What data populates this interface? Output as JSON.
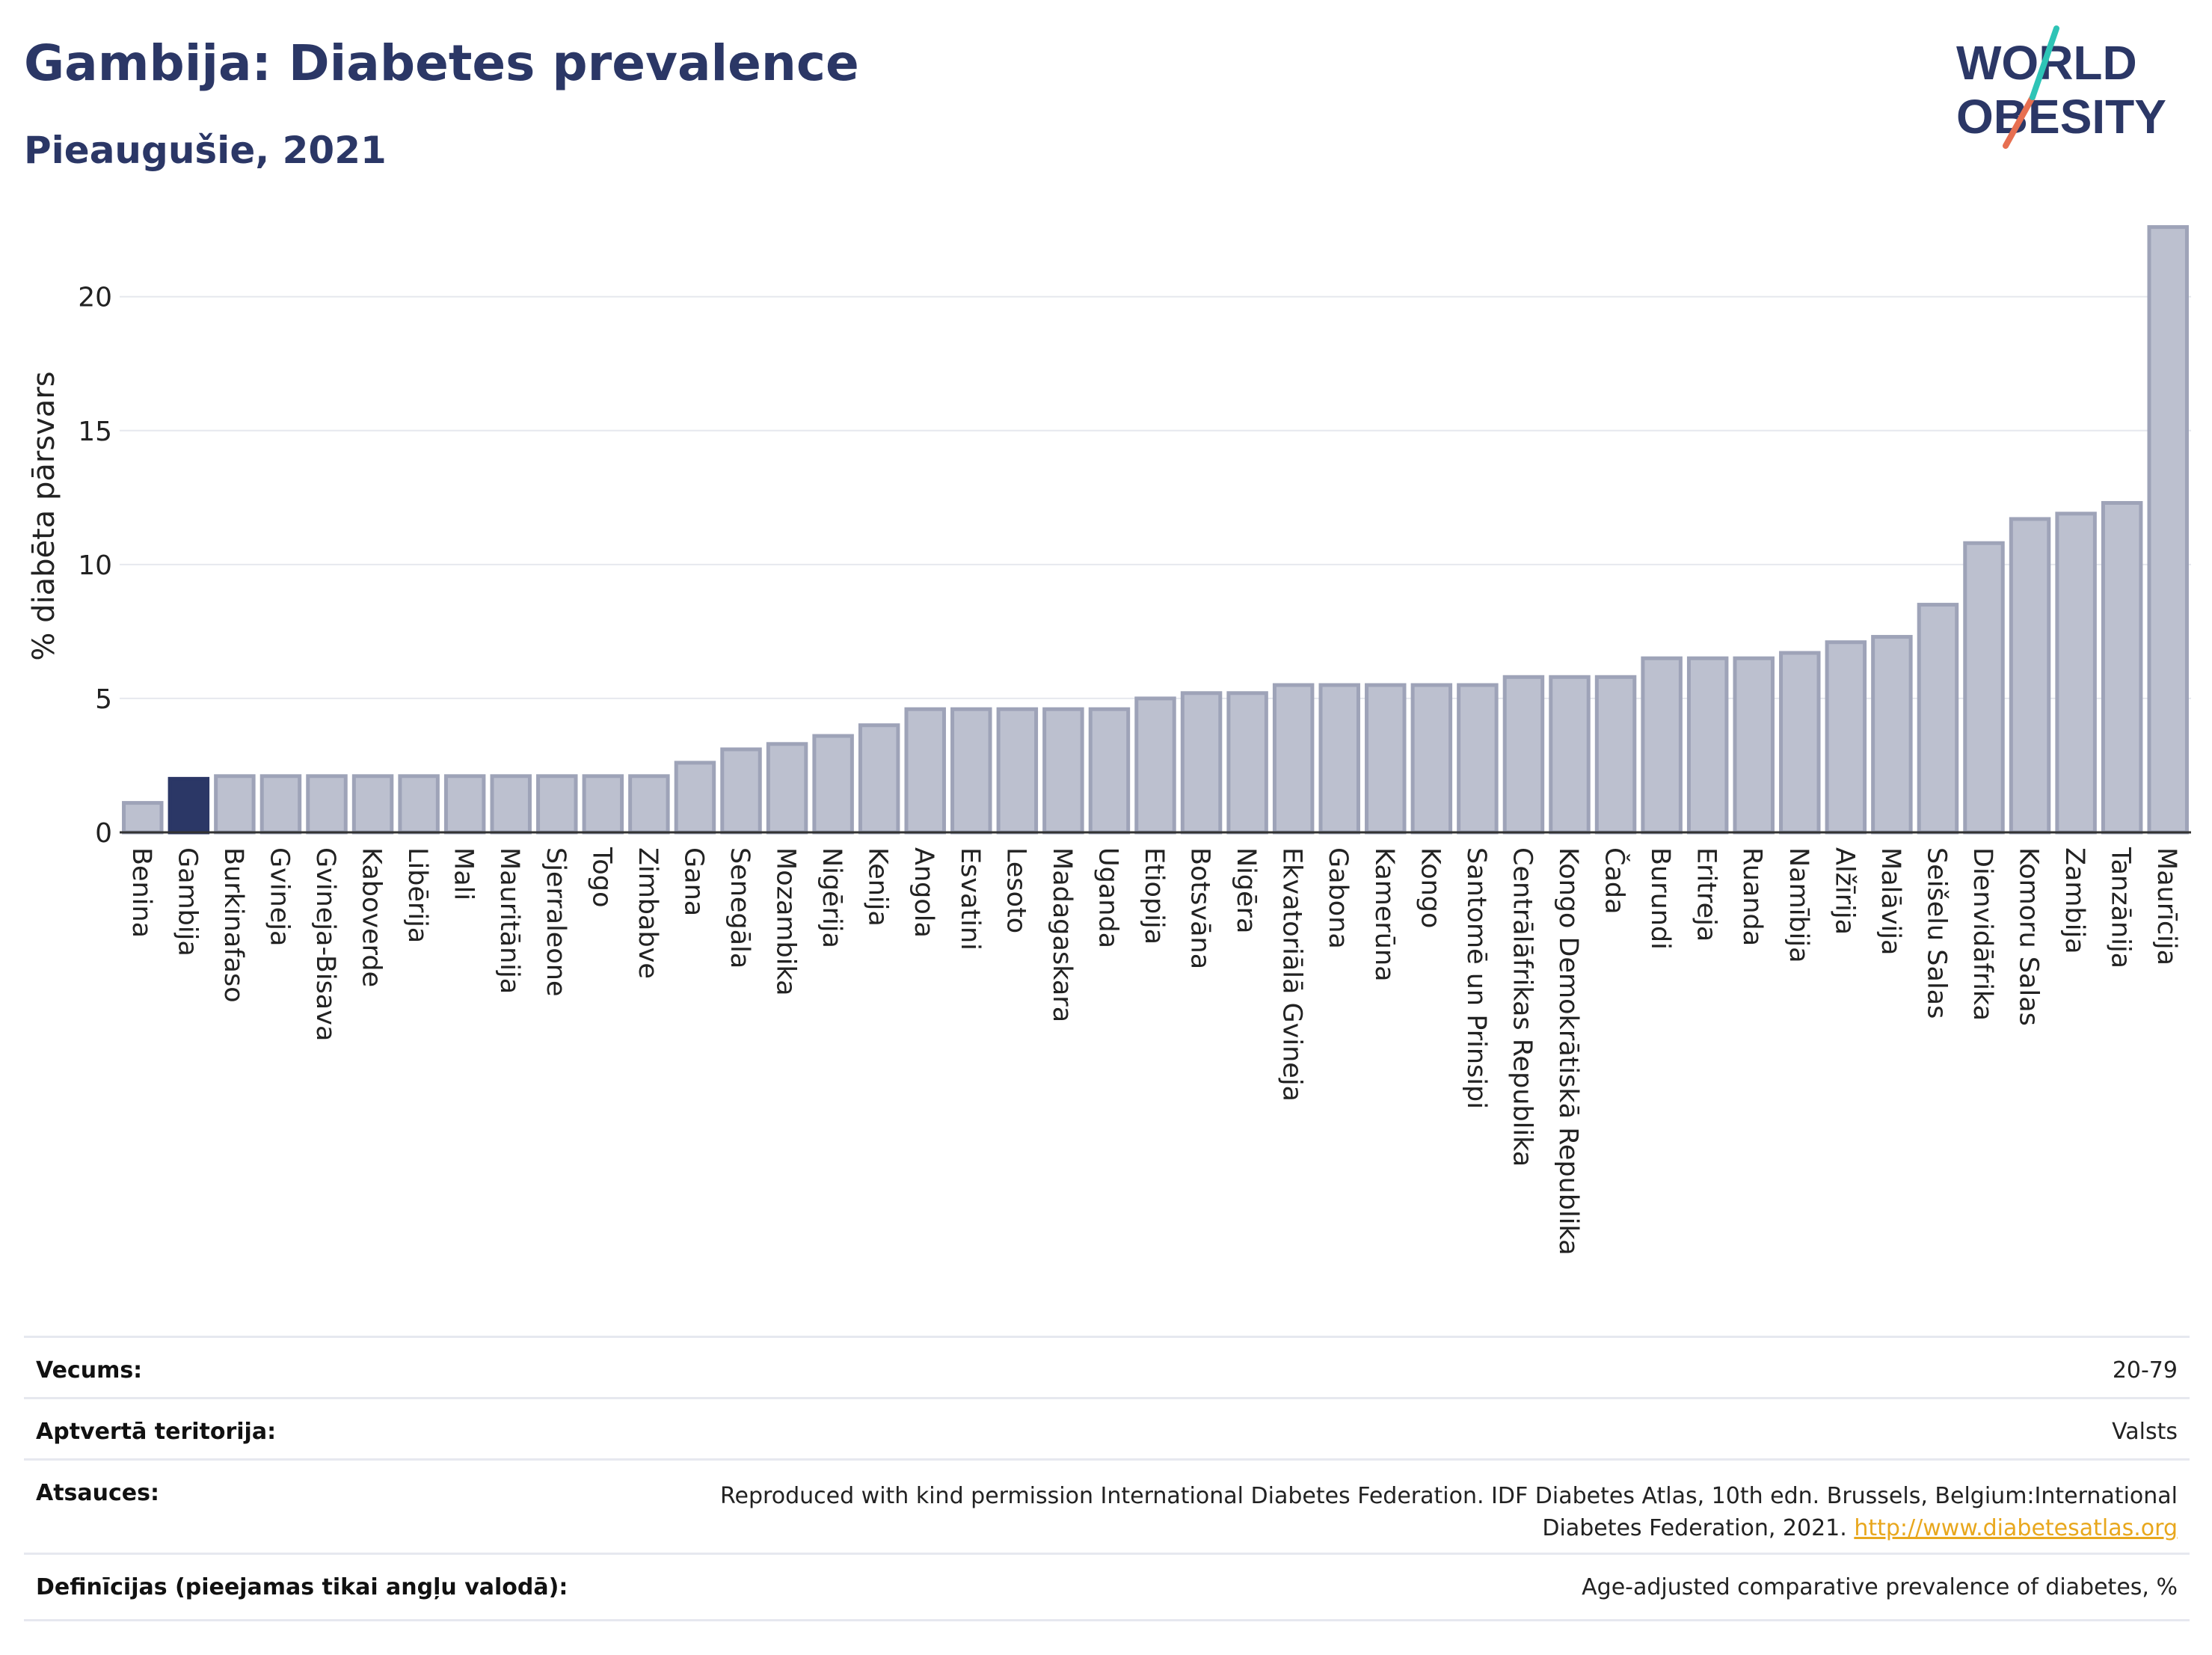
{
  "header": {
    "title": "Gambija: Diabetes prevalence",
    "subtitle": "Pieaugušie, 2021"
  },
  "logo": {
    "line1": "WORLD",
    "line2": "OBESITY",
    "accent_colors": [
      "#2ec4b6",
      "#e76f51"
    ],
    "text_color": "#2b3766"
  },
  "colors": {
    "highlight": "#2b3766",
    "bar_fill": "#bcc0cf",
    "bar_stroke": "#9ea3b8",
    "link": "#e8a71d"
  },
  "chart_data": {
    "type": "bar",
    "ylabel": "% diabēta pārsvars",
    "xlabel": "",
    "ylim": [
      0,
      22.7
    ],
    "yticks": [
      0,
      5,
      10,
      15,
      20
    ],
    "grid": true,
    "highlight": "Gambija",
    "categories": [
      "Benina",
      "Gambija",
      "Burkinafaso",
      "Gvineja",
      "Gvineja-Bisava",
      "Kaboverde",
      "Libērija",
      "Mali",
      "Mauritānija",
      "Sjerraleone",
      "Togo",
      "Zimbabve",
      "Gana",
      "Senegāla",
      "Mozambika",
      "Nigērija",
      "Kenija",
      "Angola",
      "Esvatini",
      "Lesoto",
      "Madagaskara",
      "Uganda",
      "Etiopija",
      "Botsvāna",
      "Nigēra",
      "Ekvatoriālā Gvineja",
      "Gabona",
      "Kamerūna",
      "Kongo",
      "Santomē un Prinsipi",
      "Centrālāfrikas Republika",
      "Kongo Demokrātiskā Republika",
      "Čada",
      "Burundi",
      "Eritreja",
      "Ruanda",
      "Namībija",
      "Alžīrija",
      "Malāvija",
      "Seišelu Salas",
      "Dienvidāfrika",
      "Komoru Salas",
      "Zambija",
      "Tanzānija",
      "Maurīcija"
    ],
    "values": [
      1.1,
      2.0,
      2.1,
      2.1,
      2.1,
      2.1,
      2.1,
      2.1,
      2.1,
      2.1,
      2.1,
      2.1,
      2.6,
      3.1,
      3.3,
      3.6,
      4.0,
      4.6,
      4.6,
      4.6,
      4.6,
      4.6,
      5.0,
      5.2,
      5.2,
      5.5,
      5.5,
      5.5,
      5.5,
      5.5,
      5.8,
      5.8,
      5.8,
      6.5,
      6.5,
      6.5,
      6.7,
      7.1,
      7.3,
      8.5,
      10.8,
      11.7,
      11.9,
      12.3,
      22.6
    ]
  },
  "info": [
    {
      "label": "Vecums:",
      "value": "20-79"
    },
    {
      "label": "Aptvertā teritorija:",
      "value": "Valsts"
    },
    {
      "label": "Atsauces:",
      "value_line1": "Reproduced with kind permission International Diabetes Federation.  IDF Diabetes Atlas, 10th edn. Brussels, Belgium:International",
      "value_line2": "Diabetes Federation, 2021. ",
      "link": "http://www.diabetesatlas.org"
    },
    {
      "label": "Definīcijas (pieejamas tikai angļu valodā):",
      "value": "Age-adjusted comparative prevalence of diabetes, %"
    }
  ]
}
